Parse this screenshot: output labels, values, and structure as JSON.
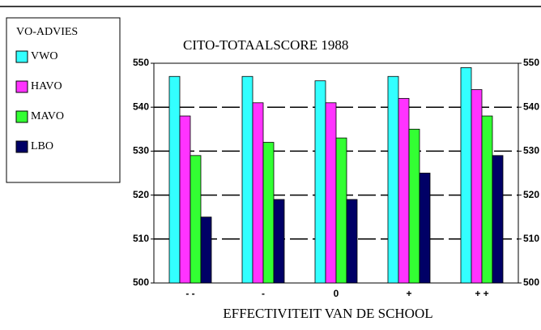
{
  "chart_data": {
    "type": "bar",
    "title": "CITO-TOTAALSCORE 1988",
    "x_label": "EFFECTIVITEIT VAN DE SCHOOL",
    "legend_title": "VO-ADVIES",
    "categories": [
      "- -",
      "-",
      "0",
      "+",
      "+ +"
    ],
    "series": [
      {
        "name": "VWO",
        "color": "#33ffff",
        "values": [
          547,
          547,
          546,
          547,
          549
        ]
      },
      {
        "name": "HAVO",
        "color": "#ff33ff",
        "values": [
          538,
          541,
          541,
          542,
          544
        ]
      },
      {
        "name": "MAVO",
        "color": "#33ff33",
        "values": [
          529,
          532,
          533,
          535,
          538
        ]
      },
      {
        "name": "LBO",
        "color": "#000066",
        "values": [
          515,
          519,
          519,
          525,
          529
        ]
      }
    ],
    "ylim": [
      500,
      550
    ],
    "yticks": [
      500,
      510,
      520,
      530,
      540,
      550
    ],
    "grid": true,
    "mirror_y_axis": true
  }
}
